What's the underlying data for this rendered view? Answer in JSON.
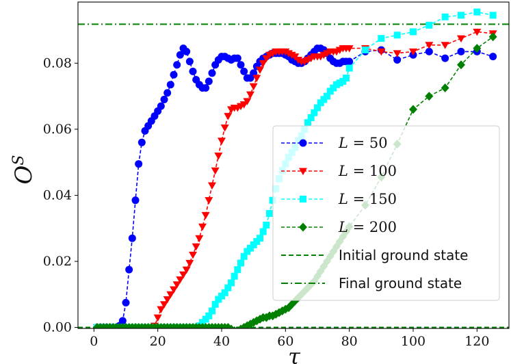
{
  "chart_data": {
    "type": "line",
    "xlabel": "τ",
    "ylabel": "O",
    "ylabel_sup": "S",
    "xlim": [
      -5,
      130
    ],
    "ylim": [
      -0.0003,
      0.0985
    ],
    "xticks": [
      0,
      20,
      40,
      60,
      80,
      100,
      120
    ],
    "yticks": [
      0.0,
      0.02,
      0.04,
      0.06,
      0.08
    ],
    "xtick_labels": [
      "0",
      "20",
      "40",
      "60",
      "80",
      "100",
      "120"
    ],
    "ytick_labels": [
      "0.00",
      "0.02",
      "0.04",
      "0.06",
      "0.08"
    ],
    "hlines": [
      {
        "name": "Initial ground state",
        "y": 0.0,
        "style": "dashed",
        "color": "#008000"
      },
      {
        "name": "Final ground state",
        "y": 0.0918,
        "style": "dashdot",
        "color": "#008000"
      }
    ],
    "series": [
      {
        "name": "L = 50",
        "var": "L",
        "num": "50",
        "color": "#0000ff",
        "marker": "circle",
        "x": [
          1,
          2,
          3,
          4,
          5,
          6,
          7,
          8,
          9,
          10,
          11,
          12,
          13,
          14,
          15,
          16,
          17,
          18,
          19,
          20,
          21,
          22,
          23,
          24,
          25,
          26,
          27,
          28,
          29,
          30,
          31,
          32,
          33,
          34,
          35,
          36,
          37,
          38,
          39,
          40,
          41,
          42,
          43,
          44,
          45,
          46,
          47,
          48,
          49,
          50,
          51,
          52,
          53,
          54,
          55,
          56,
          57,
          58,
          59,
          60,
          61,
          62,
          63,
          64,
          65,
          66,
          67,
          68,
          69,
          70,
          71,
          72,
          73,
          74,
          75,
          76,
          77,
          78,
          79,
          80,
          85,
          90,
          95,
          100,
          105,
          110,
          115,
          120,
          125
        ],
        "y": [
          0.0,
          0.0,
          0.0,
          0.0,
          0.0,
          0.0,
          0.0,
          0.0005,
          0.002,
          0.0075,
          0.0175,
          0.027,
          0.0385,
          0.0495,
          0.056,
          0.0595,
          0.061,
          0.0625,
          0.064,
          0.0655,
          0.067,
          0.069,
          0.071,
          0.0735,
          0.0765,
          0.0795,
          0.0825,
          0.0845,
          0.0835,
          0.0805,
          0.0775,
          0.075,
          0.0735,
          0.0725,
          0.0725,
          0.0745,
          0.077,
          0.0795,
          0.081,
          0.082,
          0.082,
          0.0815,
          0.081,
          0.0815,
          0.0815,
          0.0795,
          0.0775,
          0.0755,
          0.0755,
          0.077,
          0.079,
          0.0805,
          0.0815,
          0.082,
          0.0825,
          0.083,
          0.083,
          0.083,
          0.083,
          0.0825,
          0.082,
          0.081,
          0.0805,
          0.08,
          0.08,
          0.0805,
          0.0815,
          0.0825,
          0.0835,
          0.0845,
          0.0845,
          0.084,
          0.083,
          0.0815,
          0.0805,
          0.08,
          0.08,
          0.0805,
          0.0805,
          0.0805,
          0.0835,
          0.084,
          0.081,
          0.0825,
          0.0835,
          0.0815,
          0.0835,
          0.0835,
          0.082
        ]
      },
      {
        "name": "L = 100",
        "var": "L",
        "num": "100",
        "color": "#ff0000",
        "marker": "triangle-down",
        "x": [
          1,
          2,
          3,
          4,
          5,
          6,
          7,
          8,
          9,
          10,
          11,
          12,
          13,
          14,
          15,
          16,
          17,
          18,
          19,
          20,
          21,
          22,
          23,
          24,
          25,
          26,
          27,
          28,
          29,
          30,
          31,
          32,
          33,
          34,
          35,
          36,
          37,
          38,
          39,
          40,
          41,
          42,
          43,
          44,
          45,
          46,
          47,
          48,
          49,
          50,
          51,
          52,
          53,
          54,
          55,
          56,
          57,
          58,
          59,
          60,
          61,
          62,
          63,
          64,
          65,
          66,
          67,
          68,
          69,
          70,
          71,
          72,
          73,
          74,
          75,
          76,
          77,
          78,
          79,
          80,
          85,
          90,
          95,
          100,
          105,
          110,
          115,
          120,
          125
        ],
        "y": [
          0.0,
          0.0,
          0.0,
          0.0,
          0.0,
          0.0,
          0.0,
          0.0,
          0.0,
          0.0,
          0.0,
          0.0,
          0.0,
          0.0,
          0.0,
          0.0,
          0.0,
          0.0,
          0.0005,
          0.003,
          0.0055,
          0.007,
          0.0085,
          0.01,
          0.0115,
          0.013,
          0.0145,
          0.016,
          0.0175,
          0.0195,
          0.022,
          0.0245,
          0.027,
          0.0305,
          0.034,
          0.0385,
          0.043,
          0.0475,
          0.052,
          0.0565,
          0.0605,
          0.064,
          0.066,
          0.0665,
          0.0665,
          0.067,
          0.0675,
          0.0685,
          0.0705,
          0.073,
          0.0755,
          0.078,
          0.08,
          0.0815,
          0.0825,
          0.083,
          0.0835,
          0.0835,
          0.0835,
          0.0835,
          0.083,
          0.0825,
          0.082,
          0.081,
          0.0805,
          0.0805,
          0.081,
          0.0815,
          0.082,
          0.082,
          0.082,
          0.0825,
          0.083,
          0.0835,
          0.0835,
          0.0835,
          0.084,
          0.0845,
          0.0845,
          0.0845,
          0.0845,
          0.0835,
          0.083,
          0.0835,
          0.0855,
          0.0855,
          0.0875,
          0.0895,
          0.089
        ]
      },
      {
        "name": "L = 150",
        "var": "L",
        "num": "150",
        "color": "#00ffff",
        "marker": "square",
        "x": [
          1,
          2,
          3,
          4,
          5,
          6,
          7,
          8,
          9,
          10,
          11,
          12,
          13,
          14,
          15,
          16,
          17,
          18,
          19,
          20,
          21,
          22,
          23,
          24,
          25,
          26,
          27,
          28,
          29,
          30,
          31,
          32,
          33,
          34,
          35,
          36,
          37,
          38,
          39,
          40,
          41,
          42,
          43,
          44,
          45,
          46,
          47,
          48,
          49,
          50,
          51,
          52,
          53,
          54,
          55,
          56,
          57,
          58,
          59,
          60,
          61,
          62,
          63,
          64,
          65,
          66,
          67,
          68,
          69,
          70,
          71,
          72,
          73,
          74,
          75,
          76,
          77,
          78,
          79,
          80,
          85,
          90,
          95,
          100,
          105,
          110,
          115,
          120,
          125
        ],
        "y": [
          0.0,
          0.0,
          0.0,
          0.0,
          0.0,
          0.0,
          0.0,
          0.0,
          0.0,
          0.0,
          0.0,
          0.0,
          0.0,
          0.0,
          0.0,
          0.0,
          0.0,
          0.0,
          0.0,
          0.0,
          0.0,
          0.0,
          0.0,
          0.0,
          0.0,
          0.0,
          0.0,
          0.0,
          0.0,
          0.0,
          0.0,
          0.0,
          0.0005,
          0.0015,
          0.0025,
          0.0035,
          0.005,
          0.007,
          0.0085,
          0.0095,
          0.0105,
          0.012,
          0.0135,
          0.0155,
          0.0175,
          0.0195,
          0.0215,
          0.023,
          0.024,
          0.025,
          0.026,
          0.027,
          0.029,
          0.031,
          0.0345,
          0.0385,
          0.042,
          0.045,
          0.0475,
          0.0495,
          0.0515,
          0.053,
          0.0545,
          0.0565,
          0.058,
          0.06,
          0.062,
          0.0635,
          0.065,
          0.0665,
          0.068,
          0.069,
          0.07,
          0.0715,
          0.0725,
          0.0735,
          0.074,
          0.0745,
          0.0755,
          0.0785,
          0.084,
          0.0875,
          0.0885,
          0.0895,
          0.0915,
          0.094,
          0.0945,
          0.0955,
          0.0945
        ]
      },
      {
        "name": "L = 200",
        "var": "L",
        "num": "200",
        "color": "#008000",
        "marker": "diamond",
        "x": [
          1,
          2,
          3,
          4,
          5,
          6,
          7,
          8,
          9,
          10,
          11,
          12,
          13,
          14,
          15,
          16,
          17,
          18,
          19,
          20,
          21,
          22,
          23,
          24,
          25,
          26,
          27,
          28,
          29,
          30,
          31,
          32,
          33,
          34,
          35,
          36,
          37,
          38,
          39,
          40,
          41,
          42,
          43,
          44,
          45,
          46,
          47,
          48,
          49,
          50,
          51,
          52,
          53,
          54,
          55,
          56,
          57,
          58,
          59,
          60,
          61,
          62,
          63,
          64,
          65,
          66,
          67,
          68,
          69,
          70,
          71,
          72,
          73,
          74,
          75,
          76,
          77,
          78,
          79,
          80,
          85,
          90,
          95,
          100,
          105,
          110,
          115,
          120,
          125
        ],
        "y": [
          0.0,
          0.0,
          0.0,
          0.0,
          0.0,
          0.0,
          0.0,
          0.0,
          0.0,
          0.0,
          0.0,
          0.0,
          0.0,
          0.0,
          0.0,
          0.0,
          0.0,
          0.0,
          0.0,
          0.0,
          0.0,
          0.0,
          0.0,
          0.0,
          0.0,
          0.0,
          0.0,
          0.0,
          0.0,
          0.0,
          0.0,
          0.0,
          0.0,
          0.0,
          0.0,
          0.0,
          0.0,
          0.0,
          0.0,
          0.0,
          0.0,
          0.0,
          -0.0005,
          -0.001,
          -0.001,
          -0.0005,
          0.0,
          0.0005,
          0.001,
          0.0015,
          0.002,
          0.0025,
          0.003,
          0.003,
          0.0035,
          0.0035,
          0.004,
          0.0045,
          0.005,
          0.0055,
          0.006,
          0.007,
          0.008,
          0.009,
          0.01,
          0.011,
          0.012,
          0.013,
          0.014,
          0.0155,
          0.017,
          0.0185,
          0.02,
          0.0215,
          0.023,
          0.0245,
          0.026,
          0.0275,
          0.029,
          0.0305,
          0.037,
          0.0455,
          0.0555,
          0.066,
          0.07,
          0.0725,
          0.0795,
          0.0845,
          0.088
        ]
      }
    ]
  }
}
